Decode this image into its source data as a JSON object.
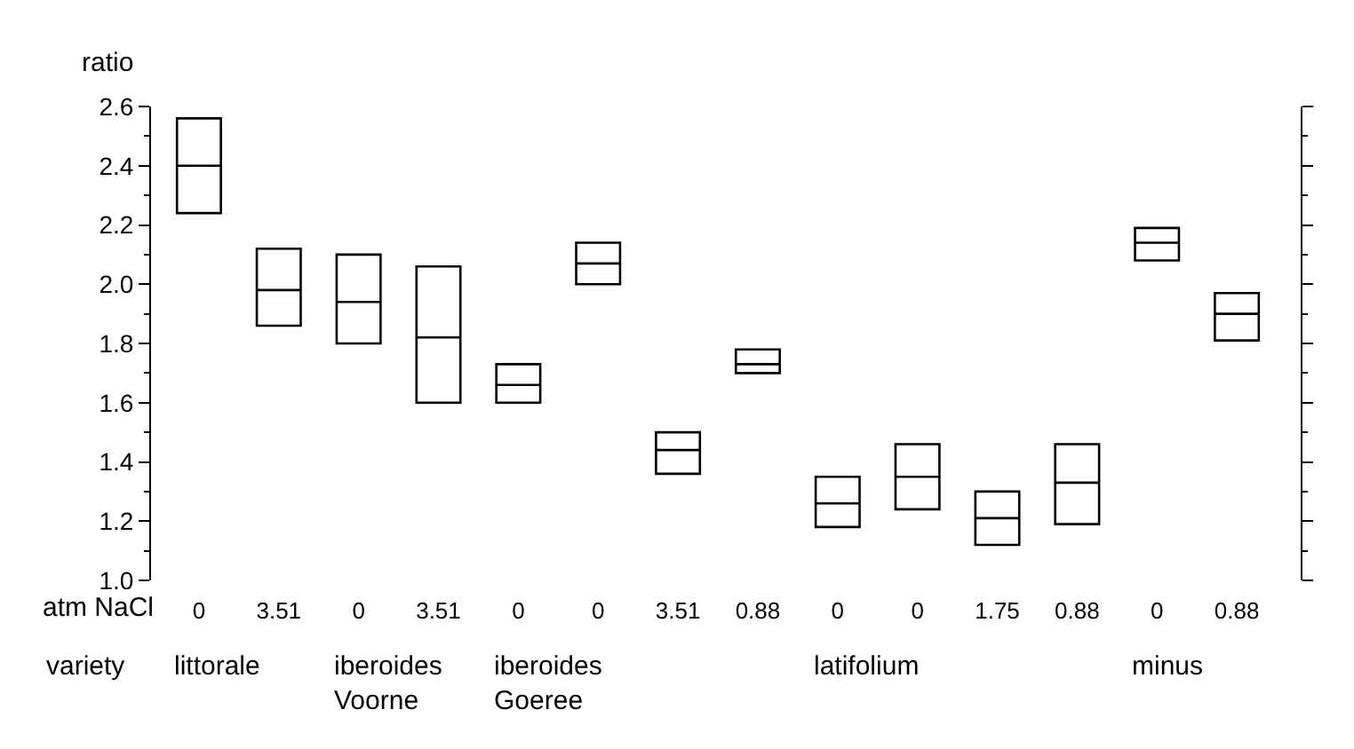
{
  "chart_data": {
    "type": "box",
    "ylabel": "ratio",
    "categories": [
      "0",
      "3.51",
      "0",
      "3.51",
      "0",
      "0",
      "3.51",
      "0.88",
      "0",
      "0",
      "1.75",
      "0.88",
      "0",
      "0.88"
    ],
    "boxes": [
      {
        "low": 2.24,
        "q1": 2.24,
        "median": 2.4,
        "q3": 2.56,
        "high": 2.56
      },
      {
        "low": 1.86,
        "q1": 1.86,
        "median": 1.98,
        "q3": 2.12,
        "high": 2.12
      },
      {
        "low": 1.8,
        "q1": 1.8,
        "median": 1.94,
        "q3": 2.1,
        "high": 2.1
      },
      {
        "low": 1.6,
        "q1": 1.6,
        "median": 1.82,
        "q3": 2.06,
        "high": 2.06
      },
      {
        "low": 1.6,
        "q1": 1.6,
        "median": 1.66,
        "q3": 1.73,
        "high": 1.73
      },
      {
        "low": 2.0,
        "q1": 2.0,
        "median": 2.07,
        "q3": 2.14,
        "high": 2.14
      },
      {
        "low": 1.36,
        "q1": 1.36,
        "median": 1.44,
        "q3": 1.5,
        "high": 1.5
      },
      {
        "low": 1.7,
        "q1": 1.7,
        "median": 1.73,
        "q3": 1.78,
        "high": 1.78
      },
      {
        "low": 1.18,
        "q1": 1.18,
        "median": 1.26,
        "q3": 1.35,
        "high": 1.35
      },
      {
        "low": 1.24,
        "q1": 1.24,
        "median": 1.35,
        "q3": 1.46,
        "high": 1.46
      },
      {
        "low": 1.12,
        "q1": 1.12,
        "median": 1.21,
        "q3": 1.3,
        "high": 1.3
      },
      {
        "low": 1.19,
        "q1": 1.19,
        "median": 1.33,
        "q3": 1.46,
        "high": 1.46
      },
      {
        "low": 2.08,
        "q1": 2.08,
        "median": 2.14,
        "q3": 2.19,
        "high": 2.19
      },
      {
        "low": 1.81,
        "q1": 1.81,
        "median": 1.9,
        "q3": 1.97,
        "high": 1.97
      }
    ],
    "color": "#000000",
    "ylim": [
      1.0,
      2.6
    ],
    "yticks": [
      {
        "value": 1.0,
        "label": "1.0"
      },
      {
        "value": 1.2,
        "label": "1.2"
      },
      {
        "value": 1.4,
        "label": "1.4"
      },
      {
        "value": 1.6,
        "label": "1.6"
      },
      {
        "value": 1.8,
        "label": "1.8"
      },
      {
        "value": 2.0,
        "label": "2.0"
      },
      {
        "value": 2.2,
        "label": "2.2"
      },
      {
        "value": 2.4,
        "label": "2.4"
      },
      {
        "value": 2.6,
        "label": "2.6"
      }
    ],
    "annotations": [
      "atm NaCl",
      "variety",
      "littorale",
      "iberoides\nVoorne",
      "iberoides\nGoeree",
      "latifolium",
      "minus"
    ]
  }
}
